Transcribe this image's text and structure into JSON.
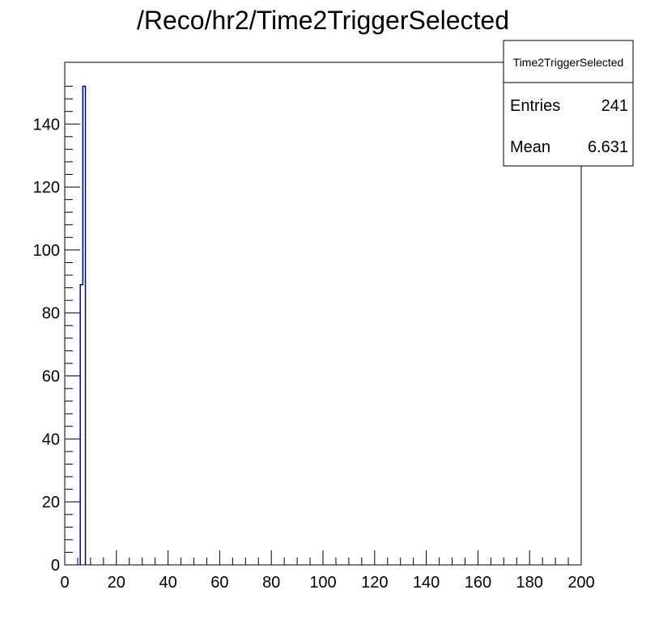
{
  "chart_data": {
    "type": "bar",
    "title": "/Reco/hr2/Time2TriggerSelected",
    "xlabel": "",
    "ylabel": "",
    "xlim": [
      0,
      200
    ],
    "ylim": [
      0,
      159.6
    ],
    "bin_width": 1,
    "bins": [
      {
        "low": 6,
        "high": 7,
        "value": 89
      },
      {
        "low": 7,
        "high": 8,
        "value": 152
      }
    ],
    "xticks": [
      "0",
      "20",
      "40",
      "60",
      "80",
      "100",
      "120",
      "140",
      "160",
      "180",
      "200"
    ],
    "yticks": [
      "0",
      "20",
      "40",
      "60",
      "80",
      "100",
      "120",
      "140"
    ],
    "line_color": "#000099",
    "grid": false,
    "stats": {
      "name": "Time2TriggerSelected",
      "entries_label": "Entries",
      "entries": "241",
      "mean_label": "Mean",
      "mean": "6.631",
      "placement": "top-right"
    }
  }
}
